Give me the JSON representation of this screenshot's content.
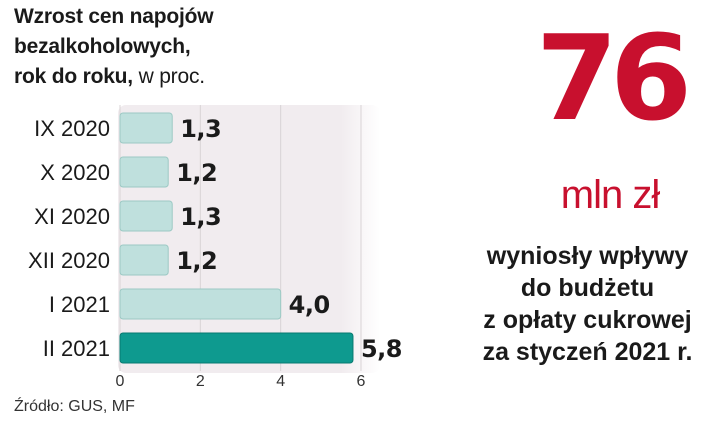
{
  "title": {
    "line1": "Wzrost cen napojów",
    "line2": "bezalkoholowych,",
    "line3_bold": "rok do roku,",
    "line3_unit": "w proc."
  },
  "source": "Źródło: GUS, MF",
  "highlight": {
    "number": "76",
    "unit": "mln zł",
    "caption_lines": [
      "wyniosły wpływy",
      "do budżetu",
      "z opłaty cukrowej",
      "za styczeń 2021 r."
    ]
  },
  "colors": {
    "bar": "#bfe0dd",
    "bar_highlight": "#0e9a8f",
    "accent": "#c8102e",
    "panel": "#f1ecef"
  },
  "chart_data": {
    "type": "bar",
    "orientation": "horizontal",
    "title": "Wzrost cen napojów bezalkoholowych, rok do roku, w proc.",
    "categories": [
      "IX 2020",
      "X 2020",
      "XI 2020",
      "XII 2020",
      "I 2021",
      "II 2021"
    ],
    "values": [
      1.3,
      1.2,
      1.3,
      1.2,
      4.0,
      5.8
    ],
    "value_labels": [
      "1,3",
      "1,2",
      "1,3",
      "1,2",
      "4,0",
      "5,8"
    ],
    "highlight_index": 5,
    "xlim": [
      0,
      6
    ],
    "xticks": [
      0,
      2,
      4,
      6
    ],
    "grid": true,
    "xlabel": "",
    "ylabel": ""
  }
}
